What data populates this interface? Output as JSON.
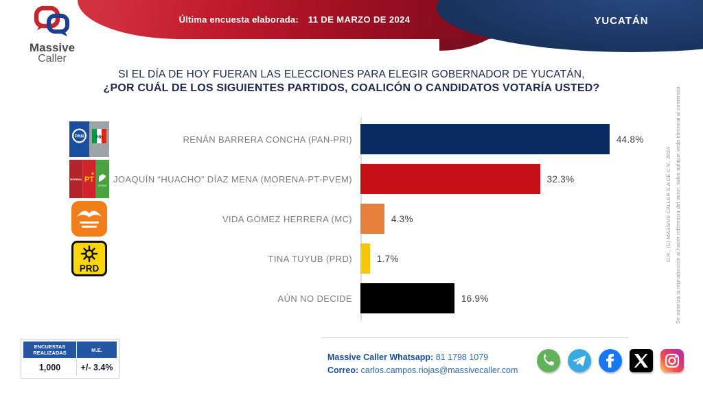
{
  "brand": {
    "logo_icon": "chat-bubbles-icon",
    "name_line1": "Massive",
    "name_line2": "Caller"
  },
  "header": {
    "banner_label": "Última encuesta elaborada:",
    "banner_date": "11 DE MARZO DE 2024",
    "region": "YUCATÁN"
  },
  "title": {
    "line1": "SI EL DÍA DE HOY FUERAN LAS ELECCIONES PARA ELEGIR GOBERNADOR DE YUCATÁN,",
    "line2": "¿POR CUÁL DE LOS SIGUIENTES PARTIDOS, COALICÓN O CANDIDATOS VOTARÍA USTED?"
  },
  "chart_data": {
    "type": "bar",
    "orientation": "horizontal",
    "title": "Intención de voto gobernador de Yucatán",
    "categories": [
      "RENÁN BARRERA CONCHA  (PAN-PRI)",
      "JOAQUÍN “HUACHO” DÍAZ MENA  (MORENA-PT-PVEM)",
      "VIDA GÓMEZ HERRERA (MC)",
      "TINA TUYUB (PRD)",
      "AÚN NO DECIDE"
    ],
    "values": [
      44.8,
      32.3,
      4.3,
      1.7,
      16.9
    ],
    "value_labels": [
      "44.8%",
      "32.3%",
      "4.3%",
      "1.7%",
      "16.9%"
    ],
    "bar_colors": [
      "#0a2a63",
      "#c70f18",
      "#e8803d",
      "#f6c60a",
      "#000000"
    ],
    "party_logos": [
      "pan-pri-logo",
      "morena-pt-pvem-logo",
      "mc-logo",
      "prd-logo",
      null
    ],
    "xlim": [
      0,
      50
    ],
    "grid": false,
    "legend": false
  },
  "footer": {
    "stats_table": {
      "headers": [
        "ENCUESTAS REALIZADAS",
        "M.E."
      ],
      "row": [
        "1,000",
        "+/- 3.4%"
      ]
    },
    "contact": {
      "whatsapp_label": "Massive Caller Whatsapp:",
      "whatsapp_number": "81 1798 1079",
      "email_label": "Correo:",
      "email": "carlos.campos.riojas@massivecaller.com"
    },
    "socials": [
      "whatsapp-icon",
      "telegram-icon",
      "facebook-icon",
      "x-icon",
      "instagram-icon"
    ]
  },
  "copyright": {
    "line1": "D.R., (C) MASSIVE CALLER S.A DE C.V., 2024",
    "line2": "Se autoriza la reproducción al hacer referencia del autor, salvo aplique veda electoral al contenido."
  }
}
